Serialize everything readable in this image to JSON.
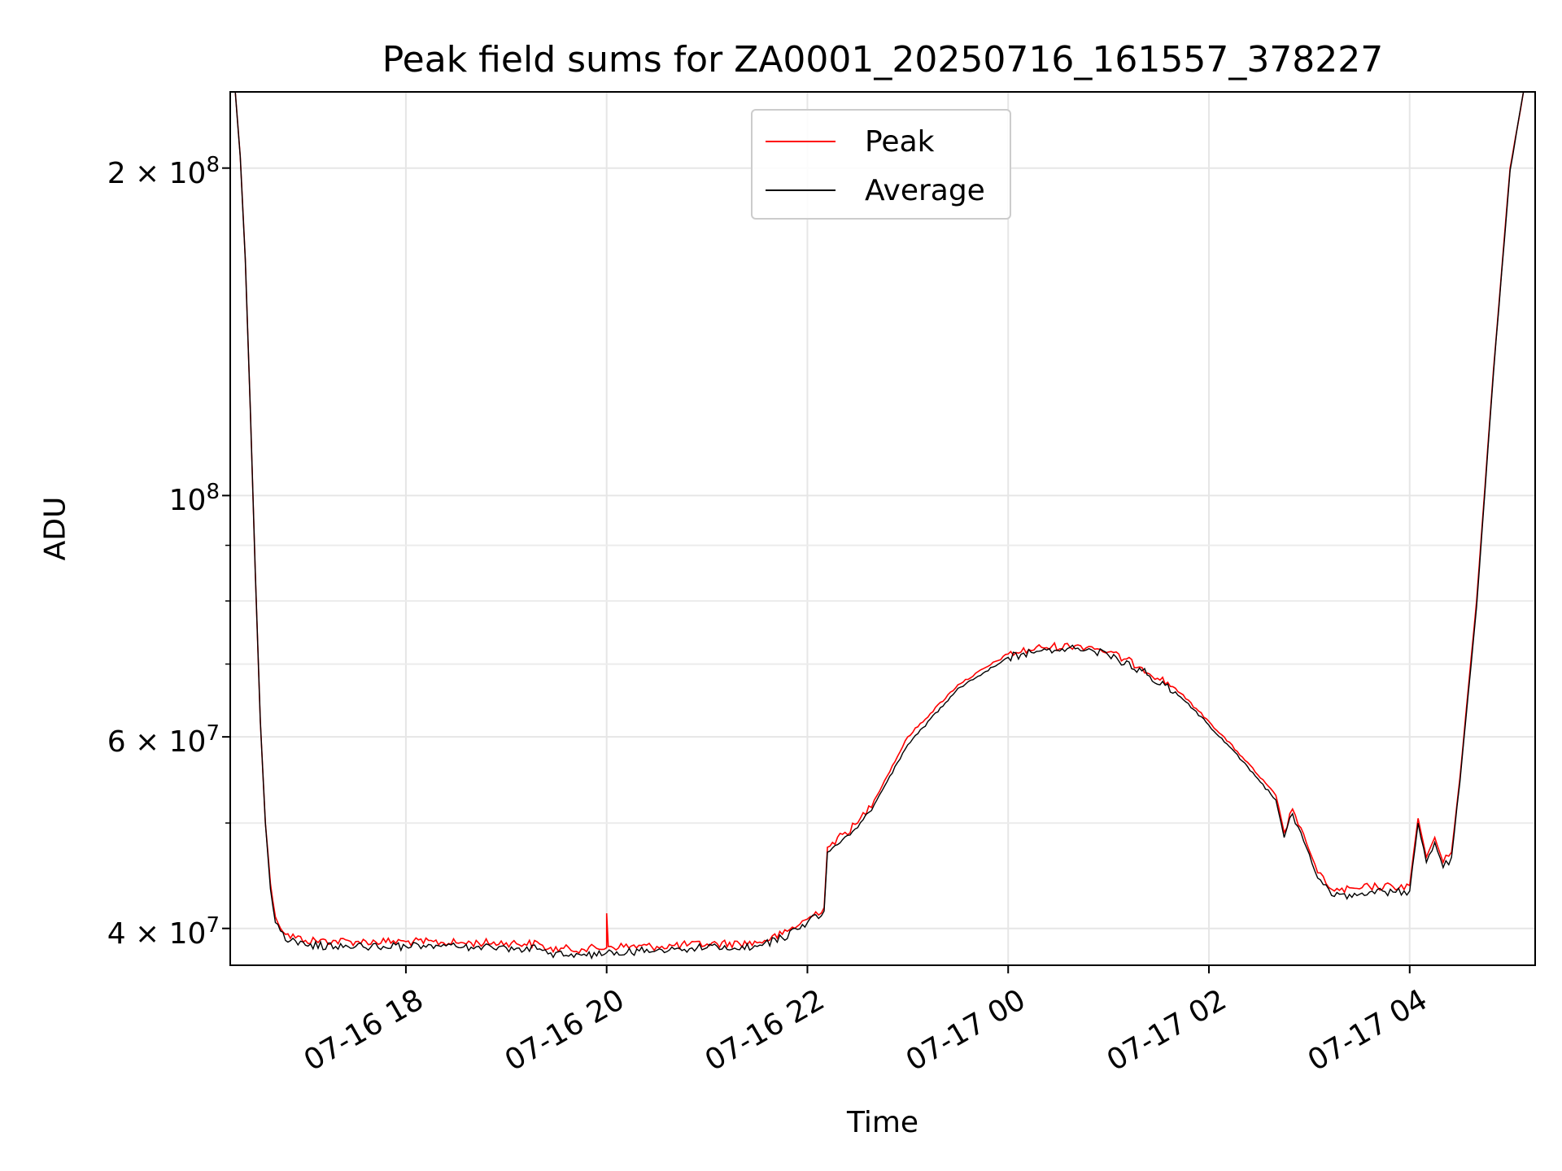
{
  "chart_data": {
    "type": "line",
    "title": "Peak field sums for ZA0001_20250716_161557_378227",
    "xlabel": "Time",
    "ylabel": "ADU",
    "yscale": "log",
    "xlim": [
      "2025-07-16 16:15",
      "2025-07-17 05:15"
    ],
    "ylim": [
      37000000,
      235000000
    ],
    "grid": true,
    "legend_position": "upper center",
    "x_ticks": [
      {
        "value": "2025-07-16 18:00",
        "label": "07-16 18"
      },
      {
        "value": "2025-07-16 20:00",
        "label": "07-16 20"
      },
      {
        "value": "2025-07-16 22:00",
        "label": "07-16 22"
      },
      {
        "value": "2025-07-17 00:00",
        "label": "07-17 00"
      },
      {
        "value": "2025-07-17 02:00",
        "label": "07-17 02"
      },
      {
        "value": "2025-07-17 04:00",
        "label": "07-17 04"
      }
    ],
    "y_ticks": [
      {
        "value": 40000000,
        "mantissa": "4 × 10",
        "exponent": "7"
      },
      {
        "value": 60000000,
        "mantissa": "6 × 10",
        "exponent": "7"
      },
      {
        "value": 100000000,
        "mantissa": "10",
        "exponent": "8"
      },
      {
        "value": 200000000,
        "mantissa": "2 × 10",
        "exponent": "8"
      }
    ],
    "y_minor_ticks": [
      50000000,
      70000000,
      80000000,
      90000000
    ],
    "series": [
      {
        "name": "Peak",
        "color": "#ff0000",
        "points": [
          [
            "2025-07-16 16:18",
            235000000
          ],
          [
            "2025-07-16 16:21",
            205000000
          ],
          [
            "2025-07-16 16:24",
            165000000
          ],
          [
            "2025-07-16 16:27",
            120000000
          ],
          [
            "2025-07-16 16:30",
            85000000
          ],
          [
            "2025-07-16 16:33",
            62000000
          ],
          [
            "2025-07-16 16:36",
            50000000
          ],
          [
            "2025-07-16 16:39",
            44000000
          ],
          [
            "2025-07-16 16:42",
            41000000
          ],
          [
            "2025-07-16 16:48",
            39500000
          ],
          [
            "2025-07-16 17:00",
            39000000
          ],
          [
            "2025-07-16 17:30",
            38900000
          ],
          [
            "2025-07-16 18:00",
            38900000
          ],
          [
            "2025-07-16 18:30",
            38800000
          ],
          [
            "2025-07-16 19:00",
            38800000
          ],
          [
            "2025-07-16 19:20",
            38700000
          ],
          [
            "2025-07-16 19:25",
            38300000
          ],
          [
            "2025-07-16 19:45",
            38300000
          ],
          [
            "2025-07-16 20:00",
            38400000
          ],
          [
            "2025-07-16 20:00",
            41300000
          ],
          [
            "2025-07-16 20:01",
            38500000
          ],
          [
            "2025-07-16 20:30",
            38500000
          ],
          [
            "2025-07-16 21:00",
            38700000
          ],
          [
            "2025-07-16 21:30",
            38800000
          ],
          [
            "2025-07-16 21:45",
            39500000
          ],
          [
            "2025-07-16 22:00",
            40800000
          ],
          [
            "2025-07-16 22:10",
            41800000
          ],
          [
            "2025-07-16 22:12",
            47500000
          ],
          [
            "2025-07-16 22:30",
            50000000
          ],
          [
            "2025-07-16 22:40",
            52500000
          ],
          [
            "2025-07-16 23:00",
            60000000
          ],
          [
            "2025-07-16 23:30",
            67000000
          ],
          [
            "2025-07-17 00:00",
            71500000
          ],
          [
            "2025-07-17 00:20",
            72500000
          ],
          [
            "2025-07-17 00:40",
            72800000
          ],
          [
            "2025-07-17 00:50",
            72600000
          ],
          [
            "2025-07-17 01:00",
            71800000
          ],
          [
            "2025-07-17 01:20",
            69500000
          ],
          [
            "2025-07-17 01:40",
            66500000
          ],
          [
            "2025-07-17 02:00",
            62000000
          ],
          [
            "2025-07-17 02:20",
            57500000
          ],
          [
            "2025-07-17 02:40",
            53000000
          ],
          [
            "2025-07-17 02:45",
            49000000
          ],
          [
            "2025-07-17 02:50",
            51500000
          ],
          [
            "2025-07-17 02:55",
            49500000
          ],
          [
            "2025-07-17 03:05",
            45000000
          ],
          [
            "2025-07-17 03:15",
            43300000
          ],
          [
            "2025-07-17 03:30",
            43500000
          ],
          [
            "2025-07-17 03:36",
            43700000
          ],
          [
            "2025-07-17 03:50",
            43700000
          ],
          [
            "2025-07-17 04:00",
            43800000
          ],
          [
            "2025-07-17 04:05",
            50500000
          ],
          [
            "2025-07-17 04:10",
            46500000
          ],
          [
            "2025-07-17 04:15",
            48500000
          ],
          [
            "2025-07-17 04:20",
            46000000
          ],
          [
            "2025-07-17 04:25",
            47000000
          ],
          [
            "2025-07-17 04:30",
            55000000
          ],
          [
            "2025-07-17 04:40",
            80000000
          ],
          [
            "2025-07-17 04:50",
            130000000
          ],
          [
            "2025-07-17 05:00",
            200000000
          ],
          [
            "2025-07-17 05:08",
            235000000
          ]
        ]
      },
      {
        "name": "Average",
        "color": "#000000",
        "points": [
          [
            "2025-07-16 16:18",
            235000000
          ],
          [
            "2025-07-16 16:21",
            205000000
          ],
          [
            "2025-07-16 16:24",
            165000000
          ],
          [
            "2025-07-16 16:27",
            120000000
          ],
          [
            "2025-07-16 16:30",
            85000000
          ],
          [
            "2025-07-16 16:33",
            62000000
          ],
          [
            "2025-07-16 16:36",
            50000000
          ],
          [
            "2025-07-16 16:39",
            43500000
          ],
          [
            "2025-07-16 16:42",
            40500000
          ],
          [
            "2025-07-16 16:48",
            39000000
          ],
          [
            "2025-07-16 17:00",
            38600000
          ],
          [
            "2025-07-16 17:30",
            38500000
          ],
          [
            "2025-07-16 18:00",
            38500000
          ],
          [
            "2025-07-16 18:30",
            38500000
          ],
          [
            "2025-07-16 19:00",
            38400000
          ],
          [
            "2025-07-16 19:20",
            38300000
          ],
          [
            "2025-07-16 19:25",
            37900000
          ],
          [
            "2025-07-16 19:45",
            37800000
          ],
          [
            "2025-07-16 20:00",
            38000000
          ],
          [
            "2025-07-16 20:30",
            38200000
          ],
          [
            "2025-07-16 21:00",
            38400000
          ],
          [
            "2025-07-16 21:30",
            38500000
          ],
          [
            "2025-07-16 21:45",
            39200000
          ],
          [
            "2025-07-16 22:00",
            40500000
          ],
          [
            "2025-07-16 22:10",
            41500000
          ],
          [
            "2025-07-16 22:12",
            47000000
          ],
          [
            "2025-07-16 22:30",
            49500000
          ],
          [
            "2025-07-16 22:40",
            52000000
          ],
          [
            "2025-07-16 23:00",
            59000000
          ],
          [
            "2025-07-16 23:30",
            66500000
          ],
          [
            "2025-07-17 00:00",
            71000000
          ],
          [
            "2025-07-17 00:20",
            72000000
          ],
          [
            "2025-07-17 00:40",
            72300000
          ],
          [
            "2025-07-17 00:50",
            72100000
          ],
          [
            "2025-07-17 01:00",
            71300000
          ],
          [
            "2025-07-17 01:20",
            69000000
          ],
          [
            "2025-07-17 01:40",
            66000000
          ],
          [
            "2025-07-17 02:00",
            61500000
          ],
          [
            "2025-07-17 02:20",
            57000000
          ],
          [
            "2025-07-17 02:40",
            52500000
          ],
          [
            "2025-07-17 02:45",
            48500000
          ],
          [
            "2025-07-17 02:50",
            51000000
          ],
          [
            "2025-07-17 02:55",
            49000000
          ],
          [
            "2025-07-17 03:05",
            44500000
          ],
          [
            "2025-07-17 03:15",
            42800000
          ],
          [
            "2025-07-17 03:30",
            43000000
          ],
          [
            "2025-07-17 03:36",
            43200000
          ],
          [
            "2025-07-17 03:50",
            43200000
          ],
          [
            "2025-07-17 04:00",
            43300000
          ],
          [
            "2025-07-17 04:05",
            50000000
          ],
          [
            "2025-07-17 04:10",
            46000000
          ],
          [
            "2025-07-17 04:15",
            48000000
          ],
          [
            "2025-07-17 04:20",
            45500000
          ],
          [
            "2025-07-17 04:25",
            46500000
          ],
          [
            "2025-07-17 04:30",
            54500000
          ],
          [
            "2025-07-17 04:40",
            79000000
          ],
          [
            "2025-07-17 04:50",
            129000000
          ],
          [
            "2025-07-17 05:00",
            199000000
          ],
          [
            "2025-07-17 05:08",
            235000000
          ]
        ]
      }
    ]
  }
}
